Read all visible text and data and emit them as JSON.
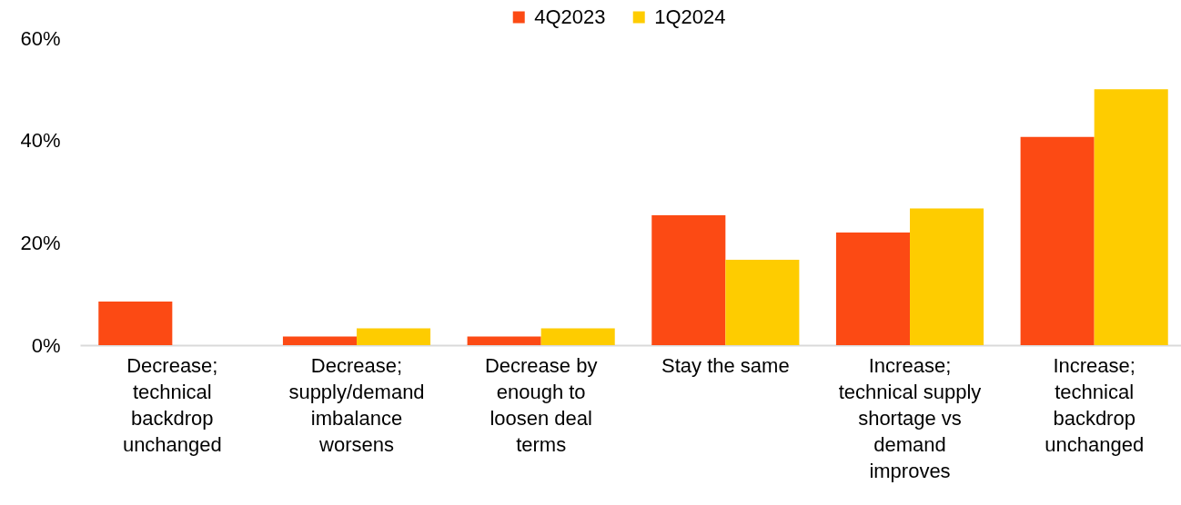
{
  "chart_data": {
    "type": "bar",
    "categories": [
      "Decrease; technical backdrop unchanged",
      "Decrease; supply/demand imbalance worsens",
      "Decrease by enough to loosen deal terms",
      "Stay the same",
      "Increase; technical supply shortage vs demand improves",
      "Increase; technical backdrop unchanged"
    ],
    "series": [
      {
        "name": "4Q2023",
        "color": "#fc4a14",
        "values": [
          8.5,
          1.7,
          1.7,
          25.4,
          22.0,
          40.7
        ]
      },
      {
        "name": "1Q2024",
        "color": "#fecc00",
        "values": [
          0,
          3.3,
          3.3,
          16.7,
          26.7,
          50.0
        ]
      }
    ],
    "ylim": [
      0,
      60
    ],
    "yticks": [
      {
        "value": 0,
        "label": "0%"
      },
      {
        "value": 20,
        "label": "20%"
      },
      {
        "value": 40,
        "label": "40%"
      },
      {
        "value": 60,
        "label": "60%"
      }
    ],
    "legend": "top"
  }
}
